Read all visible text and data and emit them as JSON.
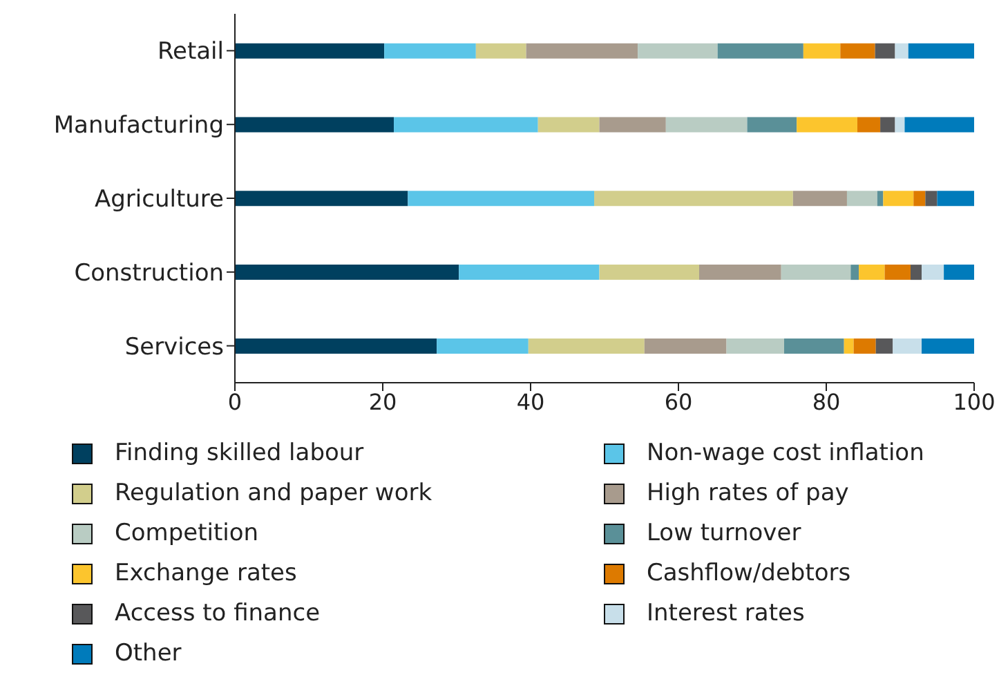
{
  "chart_data": {
    "type": "bar",
    "orientation": "horizontal",
    "stacked": true,
    "categories": [
      "Retail",
      "Manufacturing",
      "Agriculture",
      "Construction",
      "Services"
    ],
    "series": [
      {
        "name": "Finding skilled labour",
        "color": "#00405f",
        "values": [
          20.2,
          21.5,
          23.4,
          30.3,
          27.3
        ]
      },
      {
        "name": "Non-wage cost inflation",
        "color": "#5bc5e8",
        "values": [
          12.4,
          19.5,
          25.2,
          19.0,
          12.4
        ]
      },
      {
        "name": "Regulation and paper work",
        "color": "#d2ce8c",
        "values": [
          6.8,
          8.3,
          26.9,
          13.5,
          15.7
        ]
      },
      {
        "name": "High rates of pay",
        "color": "#a89b8d",
        "values": [
          15.1,
          9.0,
          7.3,
          11.1,
          11.1
        ]
      },
      {
        "name": "Competition",
        "color": "#b9ccc3",
        "values": [
          10.8,
          11.0,
          4.1,
          9.4,
          7.8
        ]
      },
      {
        "name": "Low turnover",
        "color": "#5a9098",
        "values": [
          11.6,
          6.7,
          0.8,
          1.1,
          8.1
        ]
      },
      {
        "name": "Exchange rates",
        "color": "#fcc52d",
        "values": [
          5.0,
          8.2,
          4.1,
          3.5,
          1.3
        ]
      },
      {
        "name": "Cashflow/debtors",
        "color": "#dd7a00",
        "values": [
          4.7,
          3.1,
          1.6,
          3.5,
          3.0
        ]
      },
      {
        "name": "Access to finance",
        "color": "#58585a",
        "values": [
          2.7,
          2.0,
          1.6,
          1.5,
          2.3
        ]
      },
      {
        "name": "Interest rates",
        "color": "#c8dfea",
        "values": [
          1.8,
          1.3,
          0,
          3.0,
          3.9
        ]
      },
      {
        "name": "Other",
        "color": "#007bbb",
        "values": [
          8.9,
          9.4,
          5.0,
          4.1,
          7.1
        ]
      }
    ],
    "xlim": [
      0,
      100
    ],
    "xticks": [
      0,
      20,
      40,
      60,
      80,
      100
    ],
    "grid": false,
    "legend": "bottom"
  }
}
